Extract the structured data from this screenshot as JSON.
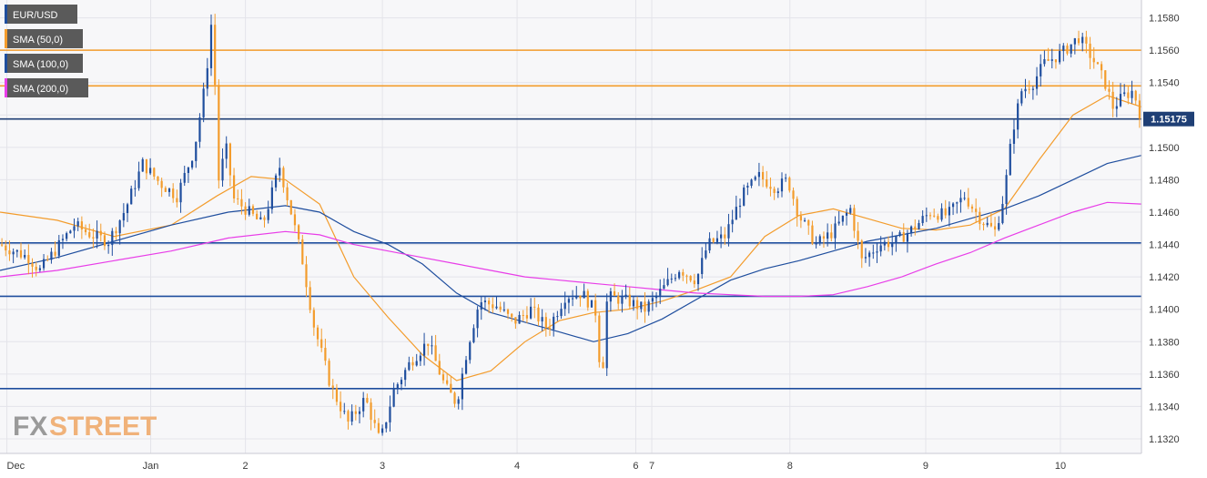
{
  "chart_data": {
    "type": "candlestick",
    "symbol": "EUR/USD",
    "yaxis": {
      "ylim": [
        1.1311,
        1.1591
      ],
      "ticks": [
        1.132,
        1.134,
        1.136,
        1.138,
        1.14,
        1.142,
        1.144,
        1.146,
        1.148,
        1.15,
        1.152,
        1.154,
        1.156,
        1.158
      ],
      "tick_labels": [
        "1.1320",
        "1.1340",
        "1.1360",
        "1.1380",
        "1.1400",
        "1.1420",
        "1.1440",
        "1.1460",
        "1.1480",
        "1.1500",
        "1.1520",
        "1.1540",
        "1.1560",
        "1.1580"
      ],
      "position": "right"
    },
    "xaxis": {
      "labels": [
        "Dec",
        "Jan",
        "2",
        "3",
        "4",
        "6",
        "7",
        "8",
        "9",
        "10"
      ]
    },
    "legend": [
      {
        "label": "EUR/USD",
        "color": "#1f4e9e"
      },
      {
        "label": "SMA (50,0)",
        "color": "#f39c2c"
      },
      {
        "label": "SMA (100,0)",
        "color": "#1f4e9e"
      },
      {
        "label": "SMA (200,0)",
        "color": "#e83de8"
      }
    ],
    "legend_placement": "top-left",
    "last_price": 1.15175,
    "last_price_label": "1.15175",
    "horizontal_levels": [
      {
        "value": 1.156,
        "color": "#f39c2c"
      },
      {
        "value": 1.1538,
        "color": "#f39c2c"
      },
      {
        "value": 1.15175,
        "color": "#1f3f75"
      },
      {
        "value": 1.1441,
        "color": "#1f4e9e"
      },
      {
        "value": 1.1408,
        "color": "#1f4e9e"
      },
      {
        "value": 1.1351,
        "color": "#1f4e9e"
      }
    ],
    "price_path": {
      "comment_free_keypoints": true,
      "points": [
        [
          0,
          1.144
        ],
        [
          0.025,
          1.1432
        ],
        [
          0.035,
          1.1424
        ],
        [
          0.05,
          1.1438
        ],
        [
          0.065,
          1.1452
        ],
        [
          0.08,
          1.1446
        ],
        [
          0.095,
          1.1442
        ],
        [
          0.11,
          1.1462
        ],
        [
          0.125,
          1.149
        ],
        [
          0.14,
          1.1478
        ],
        [
          0.155,
          1.147
        ],
        [
          0.17,
          1.1498
        ],
        [
          0.18,
          1.154
        ],
        [
          0.187,
          1.159
        ],
        [
          0.19,
          1.1475
        ],
        [
          0.198,
          1.15
        ],
        [
          0.205,
          1.1468
        ],
        [
          0.215,
          1.1462
        ],
        [
          0.23,
          1.1452
        ],
        [
          0.245,
          1.1488
        ],
        [
          0.255,
          1.146
        ],
        [
          0.265,
          1.143
        ],
        [
          0.275,
          1.139
        ],
        [
          0.29,
          1.1352
        ],
        [
          0.305,
          1.133
        ],
        [
          0.32,
          1.1345
        ],
        [
          0.333,
          1.1318
        ],
        [
          0.345,
          1.135
        ],
        [
          0.36,
          1.1368
        ],
        [
          0.375,
          1.138
        ],
        [
          0.39,
          1.1352
        ],
        [
          0.4,
          1.1342
        ],
        [
          0.41,
          1.1378
        ],
        [
          0.42,
          1.1405
        ],
        [
          0.435,
          1.1402
        ],
        [
          0.45,
          1.1392
        ],
        [
          0.465,
          1.14
        ],
        [
          0.48,
          1.1388
        ],
        [
          0.495,
          1.1408
        ],
        [
          0.51,
          1.141
        ],
        [
          0.522,
          1.1398
        ],
        [
          0.527,
          1.1352
        ],
        [
          0.532,
          1.1408
        ],
        [
          0.55,
          1.1405
        ],
        [
          0.565,
          1.14
        ],
        [
          0.58,
          1.1412
        ],
        [
          0.595,
          1.1425
        ],
        [
          0.61,
          1.1418
        ],
        [
          0.62,
          1.144
        ],
        [
          0.635,
          1.1445
        ],
        [
          0.65,
          1.147
        ],
        [
          0.665,
          1.1482
        ],
        [
          0.68,
          1.1475
        ],
        [
          0.69,
          1.148
        ],
        [
          0.7,
          1.1458
        ],
        [
          0.715,
          1.144
        ],
        [
          0.73,
          1.1448
        ],
        [
          0.745,
          1.1462
        ],
        [
          0.755,
          1.143
        ],
        [
          0.77,
          1.144
        ],
        [
          0.785,
          1.1442
        ],
        [
          0.8,
          1.145
        ],
        [
          0.815,
          1.146
        ],
        [
          0.83,
          1.1458
        ],
        [
          0.845,
          1.147
        ],
        [
          0.86,
          1.1455
        ],
        [
          0.872,
          1.1448
        ],
        [
          0.88,
          1.1472
        ],
        [
          0.887,
          1.151
        ],
        [
          0.895,
          1.1535
        ],
        [
          0.905,
          1.154
        ],
        [
          0.915,
          1.1552
        ],
        [
          0.93,
          1.1558
        ],
        [
          0.945,
          1.1568
        ],
        [
          0.957,
          1.1555
        ],
        [
          0.968,
          1.154
        ],
        [
          0.975,
          1.1525
        ],
        [
          0.985,
          1.1532
        ],
        [
          0.993,
          1.1535
        ],
        [
          1.0,
          1.15175
        ]
      ]
    },
    "sma_series": [
      {
        "name": "SMA (50,0)",
        "color": "#f39c2c",
        "points": [
          [
            0,
            1.146
          ],
          [
            0.05,
            1.1455
          ],
          [
            0.1,
            1.1445
          ],
          [
            0.15,
            1.1452
          ],
          [
            0.19,
            1.147
          ],
          [
            0.22,
            1.1482
          ],
          [
            0.25,
            1.148
          ],
          [
            0.28,
            1.1465
          ],
          [
            0.31,
            1.142
          ],
          [
            0.34,
            1.1395
          ],
          [
            0.37,
            1.1372
          ],
          [
            0.4,
            1.1356
          ],
          [
            0.43,
            1.1362
          ],
          [
            0.46,
            1.138
          ],
          [
            0.49,
            1.1393
          ],
          [
            0.52,
            1.1398
          ],
          [
            0.55,
            1.14
          ],
          [
            0.58,
            1.1405
          ],
          [
            0.61,
            1.1412
          ],
          [
            0.64,
            1.142
          ],
          [
            0.67,
            1.1445
          ],
          [
            0.7,
            1.1458
          ],
          [
            0.73,
            1.1462
          ],
          [
            0.76,
            1.1456
          ],
          [
            0.79,
            1.145
          ],
          [
            0.82,
            1.1449
          ],
          [
            0.85,
            1.1452
          ],
          [
            0.88,
            1.1462
          ],
          [
            0.91,
            1.1492
          ],
          [
            0.94,
            1.152
          ],
          [
            0.97,
            1.1532
          ],
          [
            1.0,
            1.1525
          ]
        ]
      },
      {
        "name": "SMA (100,0)",
        "color": "#1f4e9e",
        "points": [
          [
            0,
            1.1424
          ],
          [
            0.05,
            1.1432
          ],
          [
            0.1,
            1.1442
          ],
          [
            0.15,
            1.1452
          ],
          [
            0.2,
            1.146
          ],
          [
            0.25,
            1.1464
          ],
          [
            0.28,
            1.146
          ],
          [
            0.31,
            1.1448
          ],
          [
            0.34,
            1.144
          ],
          [
            0.37,
            1.1428
          ],
          [
            0.4,
            1.141
          ],
          [
            0.43,
            1.1398
          ],
          [
            0.46,
            1.1392
          ],
          [
            0.49,
            1.1386
          ],
          [
            0.52,
            1.138
          ],
          [
            0.55,
            1.1385
          ],
          [
            0.58,
            1.1394
          ],
          [
            0.61,
            1.1406
          ],
          [
            0.64,
            1.1418
          ],
          [
            0.67,
            1.1425
          ],
          [
            0.7,
            1.143
          ],
          [
            0.73,
            1.1436
          ],
          [
            0.76,
            1.1442
          ],
          [
            0.79,
            1.1446
          ],
          [
            0.82,
            1.145
          ],
          [
            0.85,
            1.1456
          ],
          [
            0.88,
            1.1462
          ],
          [
            0.91,
            1.147
          ],
          [
            0.94,
            1.148
          ],
          [
            0.97,
            1.149
          ],
          [
            1.0,
            1.1495
          ]
        ]
      },
      {
        "name": "SMA (200,0)",
        "color": "#e83de8",
        "points": [
          [
            0,
            1.142
          ],
          [
            0.05,
            1.1424
          ],
          [
            0.1,
            1.143
          ],
          [
            0.15,
            1.1436
          ],
          [
            0.2,
            1.1444
          ],
          [
            0.25,
            1.1448
          ],
          [
            0.28,
            1.1446
          ],
          [
            0.31,
            1.144
          ],
          [
            0.34,
            1.1436
          ],
          [
            0.37,
            1.1432
          ],
          [
            0.4,
            1.1428
          ],
          [
            0.43,
            1.1424
          ],
          [
            0.46,
            1.142
          ],
          [
            0.49,
            1.1418
          ],
          [
            0.52,
            1.1416
          ],
          [
            0.55,
            1.1414
          ],
          [
            0.58,
            1.1412
          ],
          [
            0.61,
            1.141
          ],
          [
            0.64,
            1.1409
          ],
          [
            0.67,
            1.1408
          ],
          [
            0.7,
            1.1408
          ],
          [
            0.73,
            1.1409
          ],
          [
            0.76,
            1.1414
          ],
          [
            0.79,
            1.142
          ],
          [
            0.82,
            1.1428
          ],
          [
            0.85,
            1.1435
          ],
          [
            0.88,
            1.1444
          ],
          [
            0.91,
            1.1452
          ],
          [
            0.94,
            1.146
          ],
          [
            0.97,
            1.1466
          ],
          [
            1.0,
            1.1465
          ]
        ]
      }
    ],
    "grid": true
  },
  "watermark": {
    "part1": "FX",
    "part2": "STREET"
  }
}
